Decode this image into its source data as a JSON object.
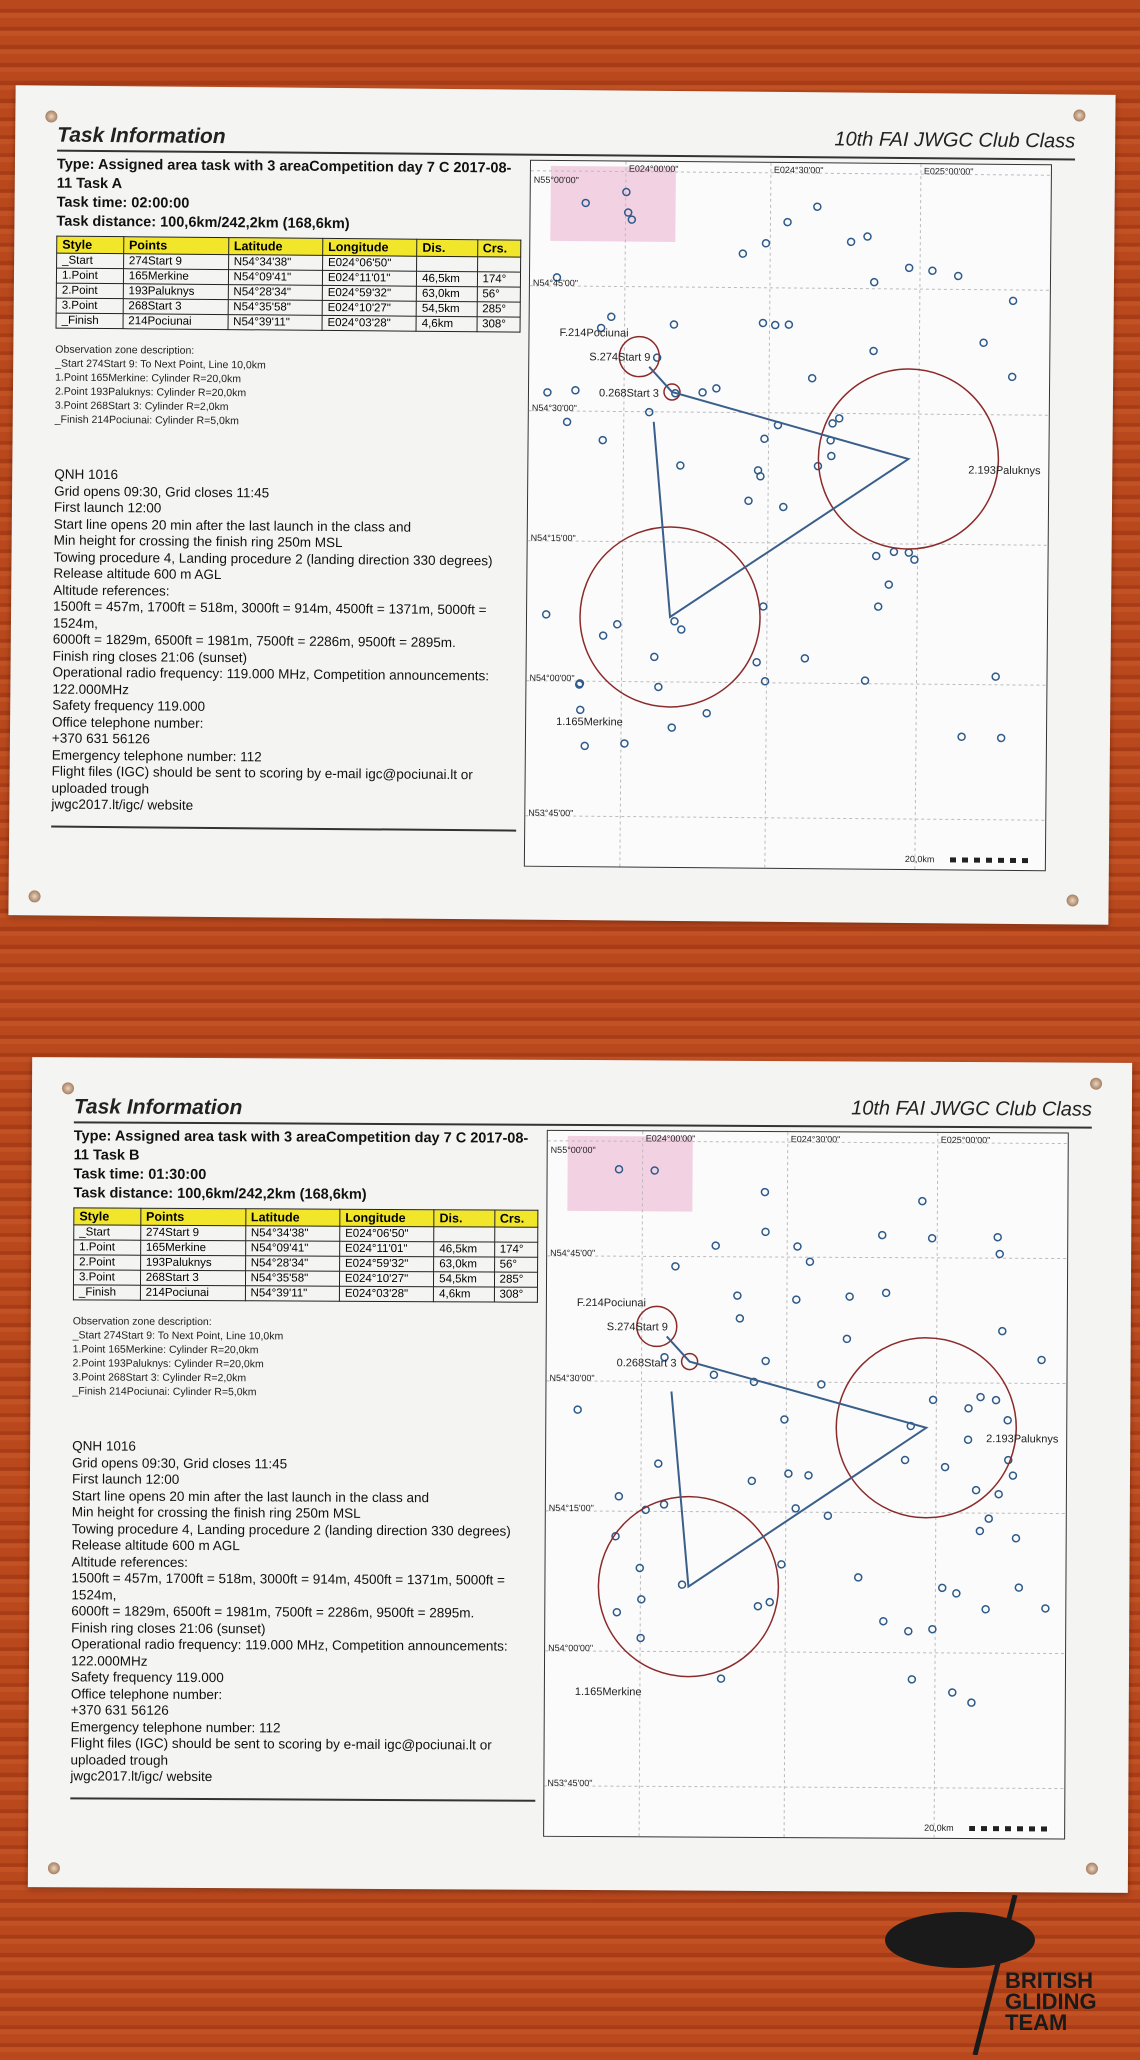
{
  "sheets": [
    {
      "title": "Task Information",
      "event": "10th FAI JWGC Club Class",
      "type": "Type: Assigned area task with 3 areaCompetition day 7  C 2017-08-11 Task A",
      "task_time": "Task time: 02:00:00",
      "task_distance": "Task distance: 100,6km/242,2km (168,6km)"
    },
    {
      "title": "Task Information",
      "event": "10th FAI JWGC Club Class",
      "type": "Type: Assigned area task with 3 areaCompetition day 7  C 2017-08-11 Task B",
      "task_time": "Task time: 01:30:00",
      "task_distance": "Task distance: 100,6km/242,2km (168,6km)"
    }
  ],
  "table": {
    "headers": [
      "Style",
      "Points",
      "Latitude",
      "Longitude",
      "Dis.",
      "Crs."
    ],
    "rows": [
      [
        "_Start",
        "274Start 9",
        "N54°34'38\"",
        "E024°06'50\"",
        "",
        ""
      ],
      [
        "1.Point",
        "165Merkine",
        "N54°09'41\"",
        "E024°11'01\"",
        "46,5km",
        "174°"
      ],
      [
        "2.Point",
        "193Paluknys",
        "N54°28'34\"",
        "E024°59'32\"",
        "63,0km",
        "56°"
      ],
      [
        "3.Point",
        "268Start 3",
        "N54°35'58\"",
        "E024°10'27\"",
        "54,5km",
        "285°"
      ],
      [
        "_Finish",
        "214Pociunai",
        "N54°39'11\"",
        "E024°03'28\"",
        "4,6km",
        "308°"
      ]
    ]
  },
  "observation_zones": [
    "Observation zone description:",
    "_Start 274Start 9: To Next Point, Line 10,0km",
    "1.Point 165Merkine: Cylinder R=20,0km",
    "2.Point 193Paluknys: Cylinder R=20,0km",
    "3.Point 268Start 3: Cylinder R=2,0km",
    "_Finish 214Pociunai: Cylinder R=5,0km"
  ],
  "notes": [
    "QNH 1016",
    "Grid opens 09:30, Grid closes 11:45",
    "First launch 12:00",
    "Start line opens 20 min after the last launch in the class and",
    "Min height for crossing the finish ring 250m MSL",
    "Towing procedure 4, Landing procedure 2 (landing direction 330 degrees)",
    "Release altitude 600 m AGL",
    "Altitude references:",
    "1500ft = 457m, 1700ft = 518m, 3000ft = 914m, 4500ft = 1371m, 5000ft = 1524m,",
    "6000ft = 1829m, 6500ft = 1981m, 7500ft = 2286m, 9500ft = 2895m.",
    "Finish ring closes 21:06 (sunset)",
    "Operational radio frequency: 119.000 MHz, Competition announcements: 122.000MHz",
    "Safety frequency 119.000",
    "Office telephone number:",
    "+370 631 56126",
    "Emergency telephone number: 112",
    "Flight files (IGC) should be sent to scoring by e-mail  igc@pociunai.lt or uploaded trough",
    "jwgc2017.lt/igc/ website"
  ],
  "map": {
    "lon_labels": [
      "E024°00'00\"",
      "E024°30'00\"",
      "E025°00'00\""
    ],
    "lat_labels": [
      "N55°00'00\"",
      "N54°45'00\"",
      "N54°30'00\"",
      "N54°15'00\"",
      "N54°00'00\"",
      "N53°45'00\""
    ],
    "waypoints": [
      "F.214Pociunai",
      "S.274Start 9",
      "0.268Start 3",
      "2.193Paluknys",
      "1.165Merkine"
    ],
    "scale": "20,0km",
    "colors": {
      "track": "#3a5f8a",
      "zone": "#8b2a2a",
      "airspace": "#f0c8dc"
    }
  },
  "logo": {
    "text": [
      "BRITISH",
      "GLIDING",
      "TEAM"
    ]
  }
}
